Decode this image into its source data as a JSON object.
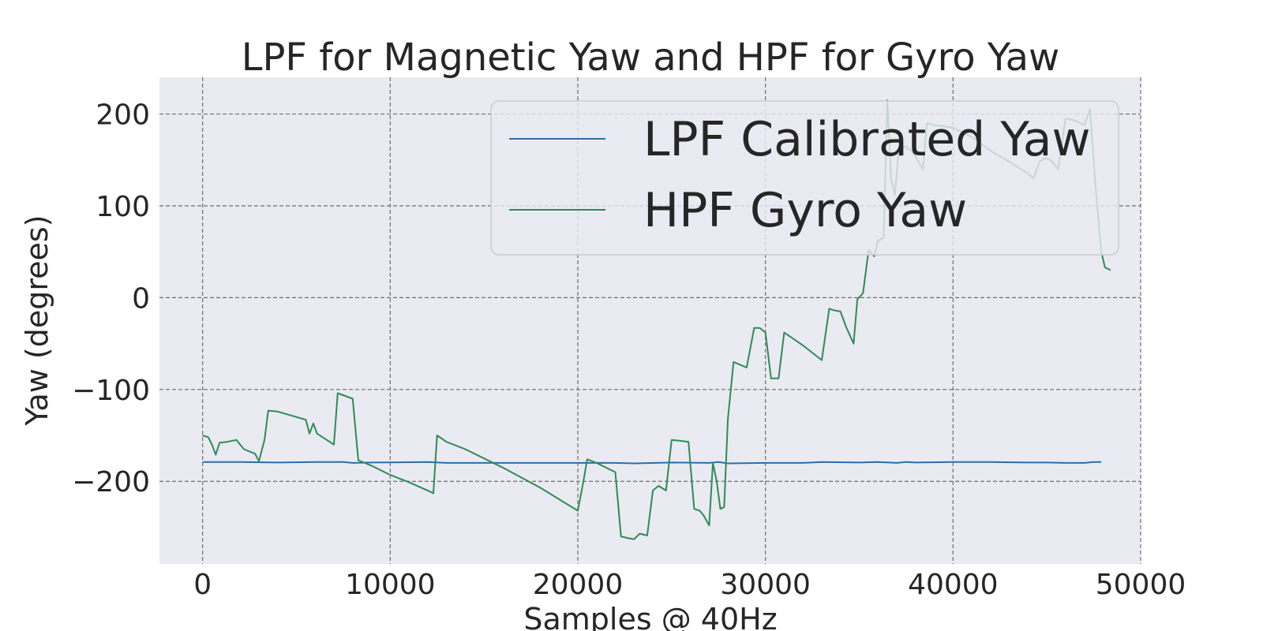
{
  "chart_data": {
    "type": "line",
    "title": "LPF for Magnetic Yaw and HPF for Gyro Yaw",
    "xlabel": "Samples @ 40Hz",
    "ylabel": "Yaw (degrees)",
    "xlim": [
      -2300,
      50000
    ],
    "ylim": [
      -290,
      240
    ],
    "x_ticks": [
      0,
      10000,
      20000,
      30000,
      40000,
      50000
    ],
    "x_tick_labels": [
      "0",
      "10000",
      "20000",
      "30000",
      "40000",
      "50000"
    ],
    "y_ticks": [
      200,
      100,
      0,
      -100,
      -200
    ],
    "y_tick_labels": [
      "200",
      "100",
      "0",
      "−100",
      "−200"
    ],
    "grid": true,
    "legend_position": "top-right",
    "background_color": "#eaeaf2",
    "series": [
      {
        "name": "LPF Calibrated Yaw",
        "color": "#2a6fad",
        "points": [
          [
            0,
            -179
          ],
          [
            2000,
            -179
          ],
          [
            4000,
            -179.5
          ],
          [
            6000,
            -179
          ],
          [
            7500,
            -179
          ],
          [
            8000,
            -180
          ],
          [
            9000,
            -179.5
          ],
          [
            12000,
            -179
          ],
          [
            13000,
            -180
          ],
          [
            16000,
            -180
          ],
          [
            20000,
            -180
          ],
          [
            22000,
            -180
          ],
          [
            23000,
            -180.5
          ],
          [
            25000,
            -179.5
          ],
          [
            27000,
            -180
          ],
          [
            27500,
            -179
          ],
          [
            28000,
            -180.5
          ],
          [
            30000,
            -180
          ],
          [
            32000,
            -180
          ],
          [
            33000,
            -179
          ],
          [
            35000,
            -179.5
          ],
          [
            36000,
            -179
          ],
          [
            37000,
            -180
          ],
          [
            37500,
            -179
          ],
          [
            38000,
            -179.5
          ],
          [
            40000,
            -179
          ],
          [
            42000,
            -179
          ],
          [
            44000,
            -179.5
          ],
          [
            45000,
            -179.5
          ],
          [
            46000,
            -180
          ],
          [
            47000,
            -180
          ],
          [
            47500,
            -179
          ],
          [
            47900,
            -179
          ]
        ]
      },
      {
        "name": "HPF Gyro Yaw",
        "color": "#2e8b57",
        "points": [
          [
            0,
            -150
          ],
          [
            300,
            -152
          ],
          [
            500,
            -160
          ],
          [
            700,
            -171
          ],
          [
            900,
            -158
          ],
          [
            1300,
            -157
          ],
          [
            1800,
            -155
          ],
          [
            2200,
            -165
          ],
          [
            2800,
            -170
          ],
          [
            3000,
            -178
          ],
          [
            3300,
            -155
          ],
          [
            3500,
            -123
          ],
          [
            4000,
            -124
          ],
          [
            5000,
            -130
          ],
          [
            5500,
            -133
          ],
          [
            5700,
            -148
          ],
          [
            5900,
            -137
          ],
          [
            6100,
            -148
          ],
          [
            7000,
            -160
          ],
          [
            7200,
            -104
          ],
          [
            8000,
            -110
          ],
          [
            8300,
            -177
          ],
          [
            9000,
            -183
          ],
          [
            10000,
            -193
          ],
          [
            11000,
            -201
          ],
          [
            12000,
            -210
          ],
          [
            12300,
            -213
          ],
          [
            12500,
            -150
          ],
          [
            13000,
            -157
          ],
          [
            14000,
            -165
          ],
          [
            16000,
            -185
          ],
          [
            18000,
            -207
          ],
          [
            20000,
            -232
          ],
          [
            20300,
            -200
          ],
          [
            20500,
            -176
          ],
          [
            21000,
            -180
          ],
          [
            22000,
            -190
          ],
          [
            22300,
            -260
          ],
          [
            22700,
            -262
          ],
          [
            23000,
            -263
          ],
          [
            23300,
            -257
          ],
          [
            23700,
            -259
          ],
          [
            24000,
            -210
          ],
          [
            24300,
            -205
          ],
          [
            24700,
            -210
          ],
          [
            25000,
            -155
          ],
          [
            25500,
            -156
          ],
          [
            25900,
            -157
          ],
          [
            26200,
            -230
          ],
          [
            26500,
            -232
          ],
          [
            26700,
            -237
          ],
          [
            27000,
            -248
          ],
          [
            27200,
            -180
          ],
          [
            27400,
            -200
          ],
          [
            27600,
            -230
          ],
          [
            27800,
            -228
          ],
          [
            28000,
            -132
          ],
          [
            28300,
            -70
          ],
          [
            29000,
            -76
          ],
          [
            29400,
            -33
          ],
          [
            29700,
            -33
          ],
          [
            30000,
            -38
          ],
          [
            30300,
            -88
          ],
          [
            30700,
            -88
          ],
          [
            31000,
            -38
          ],
          [
            32000,
            -52
          ],
          [
            33000,
            -68
          ],
          [
            33400,
            -12
          ],
          [
            33700,
            -14
          ],
          [
            34000,
            -15
          ],
          [
            34300,
            -32
          ],
          [
            34700,
            -50
          ],
          [
            34900,
            -2
          ],
          [
            35200,
            5
          ],
          [
            35500,
            52
          ],
          [
            35800,
            45
          ],
          [
            36000,
            62
          ],
          [
            36300,
            65
          ],
          [
            36500,
            215
          ],
          [
            36700,
            130
          ],
          [
            36900,
            112
          ],
          [
            37100,
            160
          ],
          [
            37400,
            165
          ],
          [
            37800,
            160
          ],
          [
            38100,
            150
          ],
          [
            38400,
            140
          ],
          [
            38600,
            190
          ],
          [
            39000,
            188
          ],
          [
            40000,
            185
          ],
          [
            41000,
            175
          ],
          [
            42000,
            160
          ],
          [
            43000,
            148
          ],
          [
            44000,
            135
          ],
          [
            44300,
            130
          ],
          [
            44600,
            148
          ],
          [
            44900,
            152
          ],
          [
            45200,
            150
          ],
          [
            45600,
            140
          ],
          [
            46000,
            195
          ],
          [
            46500,
            193
          ],
          [
            47000,
            188
          ],
          [
            47300,
            205
          ],
          [
            47600,
            120
          ],
          [
            47900,
            50
          ],
          [
            48100,
            33
          ],
          [
            48400,
            30
          ]
        ]
      }
    ]
  }
}
